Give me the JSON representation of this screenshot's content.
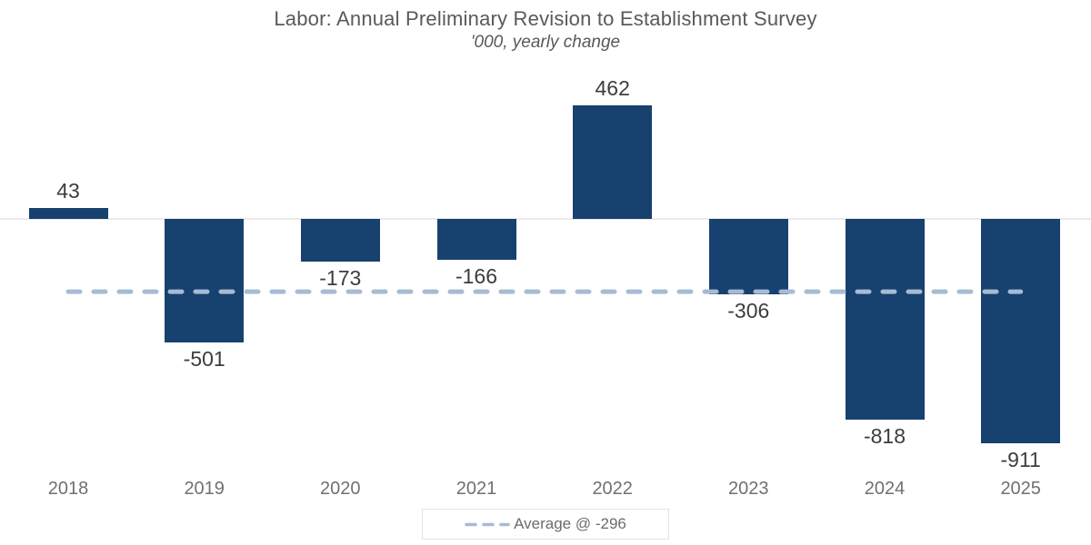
{
  "header": {
    "title": "Labor: Annual Preliminary Revision to Establishment Survey",
    "subtitle": "'000, yearly change"
  },
  "legend": {
    "label": "Average @ -296"
  },
  "colors": {
    "bar": "#17416F",
    "average_line": "#A6BBD3",
    "axis_line": "#EAEAEA",
    "value_label": "#3D3D3D",
    "axis_label": "#707070",
    "title_text": "#595959"
  },
  "chart_data": {
    "type": "bar",
    "title": "Labor: Annual Preliminary Revision to Establishment Survey",
    "subtitle": "'000, yearly change",
    "categories": [
      "2018",
      "2019",
      "2020",
      "2021",
      "2022",
      "2023",
      "2024",
      "2025"
    ],
    "values": [
      43,
      -501,
      -173,
      -166,
      462,
      -306,
      -818,
      -911
    ],
    "average": -296,
    "average_label": "Average @ -296",
    "xlabel": "",
    "ylabel": "",
    "baseline": 0,
    "grid": false,
    "value_labels_shown": true,
    "legend_position": "bottom-center",
    "average_line_style": "dashed"
  }
}
